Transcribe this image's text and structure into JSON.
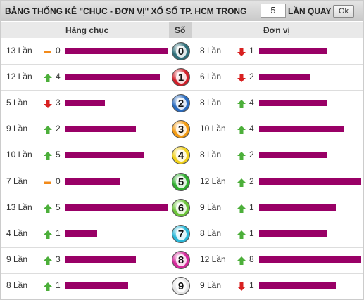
{
  "header": {
    "title": "BẢNG THỐNG KÊ \"CHỤC - ĐƠN VỊ\" XỔ SỐ TP. HCM TRONG",
    "input_value": "5",
    "suffix": "LẦN QUAY",
    "button": "Ok"
  },
  "table": {
    "columns": [
      "Hàng chục",
      "Số",
      "Đơn vị"
    ],
    "rows": [
      {
        "digit": 0,
        "ball_color": "#2f6f7a",
        "tens": {
          "count": {
            "value": 13,
            "label": "13 Lần"
          },
          "trend": "same",
          "change": 0
        },
        "units": {
          "count": {
            "value": 8,
            "label": "8 Lần"
          },
          "trend": "down",
          "change": 1
        }
      },
      {
        "digit": 1,
        "ball_color": "#d0202a",
        "tens": {
          "count": {
            "value": 12,
            "label": "12 Lần"
          },
          "trend": "up",
          "change": 4
        },
        "units": {
          "count": {
            "value": 6,
            "label": "6 Lần"
          },
          "trend": "down",
          "change": 2
        }
      },
      {
        "digit": 2,
        "ball_color": "#2a6cc0",
        "tens": {
          "count": {
            "value": 5,
            "label": "5 Lần"
          },
          "trend": "down",
          "change": 3
        },
        "units": {
          "count": {
            "value": 8,
            "label": "8 Lần"
          },
          "trend": "up",
          "change": 4
        }
      },
      {
        "digit": 3,
        "ball_color": "#f29a12",
        "tens": {
          "count": {
            "value": 9,
            "label": "9 Lần"
          },
          "trend": "up",
          "change": 2
        },
        "units": {
          "count": {
            "value": 10,
            "label": "10 Lần"
          },
          "trend": "up",
          "change": 4
        }
      },
      {
        "digit": 4,
        "ball_color": "#f2d21a",
        "tens": {
          "count": {
            "value": 10,
            "label": "10 Lần"
          },
          "trend": "up",
          "change": 5
        },
        "units": {
          "count": {
            "value": 8,
            "label": "8 Lần"
          },
          "trend": "up",
          "change": 2
        }
      },
      {
        "digit": 5,
        "ball_color": "#2fae2f",
        "tens": {
          "count": {
            "value": 7,
            "label": "7 Lần"
          },
          "trend": "same",
          "change": 0
        },
        "units": {
          "count": {
            "value": 12,
            "label": "12 Lần"
          },
          "trend": "up",
          "change": 2
        }
      },
      {
        "digit": 6,
        "ball_color": "#6cc43a",
        "tens": {
          "count": {
            "value": 13,
            "label": "13 Lần"
          },
          "trend": "up",
          "change": 5
        },
        "units": {
          "count": {
            "value": 9,
            "label": "9 Lần"
          },
          "trend": "up",
          "change": 1
        }
      },
      {
        "digit": 7,
        "ball_color": "#2ab8d8",
        "tens": {
          "count": {
            "value": 4,
            "label": "4 Lần"
          },
          "trend": "up",
          "change": 1
        },
        "units": {
          "count": {
            "value": 8,
            "label": "8 Lần"
          },
          "trend": "up",
          "change": 1
        }
      },
      {
        "digit": 8,
        "ball_color": "#d42a9a",
        "tens": {
          "count": {
            "value": 9,
            "label": "9 Lần"
          },
          "trend": "up",
          "change": 3
        },
        "units": {
          "count": {
            "value": 12,
            "label": "12 Lần"
          },
          "trend": "up",
          "change": 8
        }
      },
      {
        "digit": 9,
        "ball_color": "#e6e6e6",
        "tens": {
          "count": {
            "value": 8,
            "label": "8 Lần"
          },
          "trend": "up",
          "change": 1
        },
        "units": {
          "count": {
            "value": 9,
            "label": "9 Lần"
          },
          "trend": "down",
          "change": 1
        }
      }
    ]
  }
}
